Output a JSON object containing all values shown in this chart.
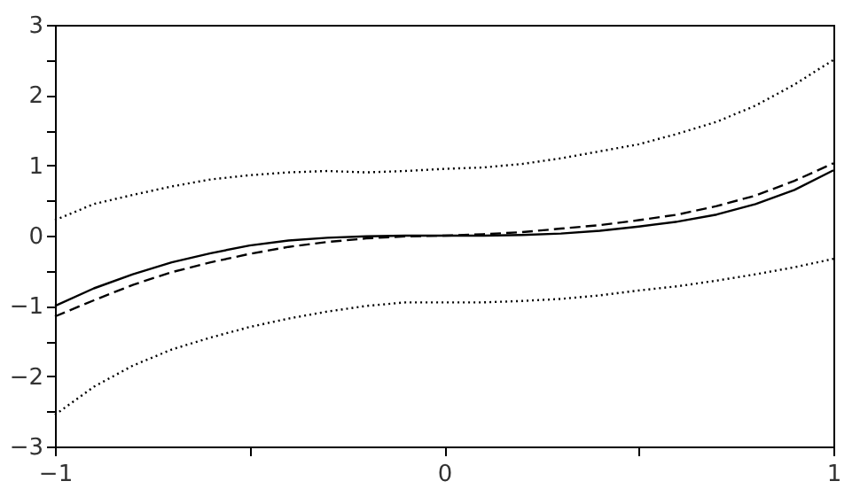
{
  "chart_data": {
    "type": "line",
    "x": [
      -1,
      -0.9,
      -0.8,
      -0.7,
      -0.6,
      -0.5,
      -0.4,
      -0.3,
      -0.2,
      -0.1,
      0,
      0.1,
      0.2,
      0.3,
      0.4,
      0.5,
      0.6,
      0.7,
      0.8,
      0.9,
      1
    ],
    "series": [
      {
        "color": "#000000",
        "line_style": "solid",
        "values": [
          -1,
          -0.75,
          -0.55,
          -0.38,
          -0.25,
          -0.14,
          -0.07,
          -0.03,
          -0.01,
          0,
          0,
          0,
          0.01,
          0.03,
          0.07,
          0.13,
          0.2,
          0.3,
          0.45,
          0.65,
          0.93
        ]
      },
      {
        "color": "#000000",
        "line_style": "dashed",
        "values": [
          -1.15,
          -0.92,
          -0.7,
          -0.52,
          -0.38,
          -0.26,
          -0.16,
          -0.09,
          -0.04,
          -0.01,
          0,
          0.02,
          0.05,
          0.1,
          0.15,
          0.22,
          0.3,
          0.42,
          0.57,
          0.78,
          1.03
        ]
      },
      {
        "color": "#000000",
        "line_style": "dotted",
        "values": [
          0.22,
          0.45,
          0.58,
          0.7,
          0.8,
          0.86,
          0.9,
          0.92,
          0.9,
          0.92,
          0.95,
          0.97,
          1.02,
          1.1,
          1.2,
          1.3,
          1.45,
          1.62,
          1.85,
          2.15,
          2.5
        ]
      },
      {
        "color": "#000000",
        "line_style": "dotted",
        "values": [
          -2.55,
          -2.15,
          -1.85,
          -1.62,
          -1.45,
          -1.3,
          -1.18,
          -1.08,
          -1.0,
          -0.95,
          -0.95,
          -0.95,
          -0.93,
          -0.9,
          -0.85,
          -0.78,
          -0.72,
          -0.64,
          -0.55,
          -0.45,
          -0.33
        ]
      }
    ],
    "xlim": [
      -1,
      1
    ],
    "xticks": [
      -1,
      {
        "value": -0.5,
        "label": null
      },
      0,
      {
        "value": 0.5,
        "label": null
      },
      1
    ],
    "ylim": [
      -3,
      3
    ],
    "yticks": [
      -3,
      {
        "value": -2.5,
        "label": null
      },
      -2,
      {
        "value": -1.5,
        "label": null
      },
      -1,
      {
        "value": -0.5,
        "label": null
      },
      0,
      {
        "value": 0.5,
        "label": null
      },
      1,
      {
        "value": 1.5,
        "label": null
      },
      2,
      {
        "value": 2.5,
        "label": null
      },
      3
    ],
    "grid": false,
    "marker": "none"
  }
}
